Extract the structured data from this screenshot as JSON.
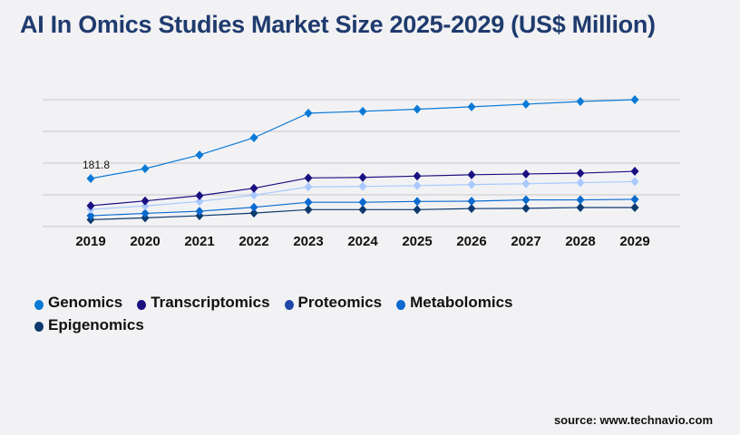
{
  "title": "AI In Omics Studies Market Size 2025-2029 (US$ Million)",
  "source": "source: www.technavio.com",
  "chart_data": {
    "type": "line",
    "title": "AI In Omics Studies Market Size 2025-2029 (US$ Million)",
    "categories": [
      "2019",
      "2020",
      "2021",
      "2022",
      "2023",
      "2024",
      "2025",
      "2026",
      "2027",
      "2028",
      "2029"
    ],
    "ylim": [
      0,
      480
    ],
    "grid": true,
    "legend": "bottom",
    "annotations": [
      {
        "series": "Genomics",
        "category": "2019",
        "label": "181.8"
      }
    ],
    "series": [
      {
        "name": "Genomics",
        "color": "#0a7ad6",
        "line": "#0a7ad6",
        "values": [
          181.8,
          219,
          271,
          336,
          429,
          436,
          444,
          453,
          463,
          473,
          480
        ]
      },
      {
        "name": "Transcriptomics",
        "color": "#1a1080",
        "line": "#1a1080",
        "values": [
          79,
          97,
          117,
          145,
          184,
          186,
          191,
          196,
          199,
          202,
          209
        ]
      },
      {
        "name": "Proteomics",
        "color": "#1e47a8",
        "line": "#a9c9ff",
        "values": [
          65,
          78,
          95,
          119,
          150,
          152,
          155,
          159,
          162,
          166,
          170
        ]
      },
      {
        "name": "Metabolomics",
        "color": "#0a6ad0",
        "line": "#0a6ad0",
        "values": [
          41,
          50,
          58,
          73,
          92,
          92,
          95,
          96,
          101,
          101,
          103
        ]
      },
      {
        "name": "Epigenomics",
        "color": "#0d3a6e",
        "line": "#0d3a6e",
        "values": [
          26,
          33,
          41,
          51,
          64,
          64,
          64,
          68,
          69,
          72,
          72
        ]
      }
    ]
  }
}
